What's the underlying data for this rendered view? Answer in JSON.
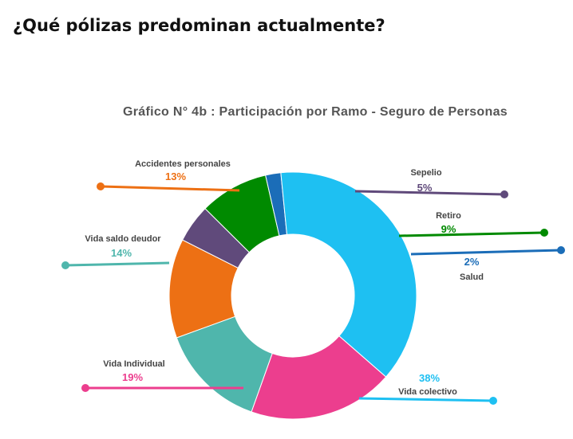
{
  "page": {
    "heading": "¿Qué pólizas predominan actualmente?"
  },
  "chart_data": {
    "type": "pie",
    "title": "Gráfico N° 4b : Participación por Ramo - Seguro de Personas",
    "unit": "%",
    "donut": true,
    "slices": [
      {
        "label": "Accidentes personales",
        "value": 13,
        "display": "13%",
        "color": "#ED7014"
      },
      {
        "label": "Sepelio",
        "value": 5,
        "display": "5%",
        "color": "#604A7B"
      },
      {
        "label": "Retiro",
        "value": 9,
        "display": "9%",
        "color": "#008A00"
      },
      {
        "label": "Salud",
        "value": 2,
        "display": "2%",
        "color": "#1B6DB8"
      },
      {
        "label": "Vida colectivo",
        "value": 38,
        "display": "38%",
        "color": "#1EC0F2"
      },
      {
        "label": "Vida Individual",
        "value": 19,
        "display": "19%",
        "color": "#EC3E8E"
      },
      {
        "label": "Vida saldo deudor",
        "value": 14,
        "display": "14%",
        "color": "#4FB6AC"
      }
    ]
  }
}
